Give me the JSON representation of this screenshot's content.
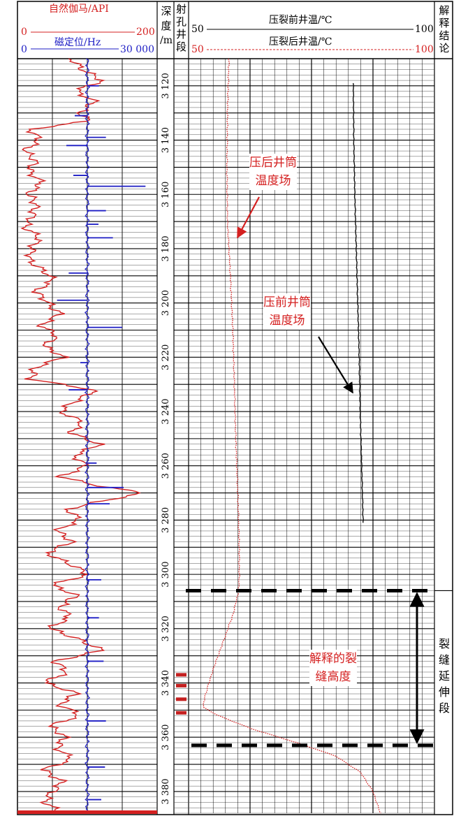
{
  "track1": {
    "gr_label": "自然伽马/API",
    "gr_min": "0",
    "gr_max": "200",
    "ccl_label": "磁定位/Hz",
    "ccl_min": "0",
    "ccl_max": "30 000"
  },
  "depth_header": [
    "深",
    "度",
    "/m"
  ],
  "perf_header": [
    "射",
    "孔",
    "井",
    "段"
  ],
  "temp": {
    "pre_label": "压裂前井温/℃",
    "pre_min": "50",
    "pre_max": "100",
    "post_label": "压裂后井温/℃",
    "post_min": "50",
    "post_max": "100"
  },
  "conclusion_header": [
    "解",
    "释",
    "结",
    "论"
  ],
  "conclusion_text": [
    "裂",
    "缝",
    "延",
    "伸",
    "段"
  ],
  "annotations": {
    "post_field": [
      "压后井筒",
      "温度场"
    ],
    "pre_field": [
      "压前井筒",
      "温度场"
    ],
    "fracture_height": [
      "解释的裂",
      "缝高度"
    ]
  },
  "colors": {
    "gr": "#d42020",
    "ccl": "#1c1cc4",
    "post_temp": "#d42020",
    "pre_temp": "#111111",
    "annotation": "#d42020"
  },
  "chart_data": {
    "type": "line",
    "y_axis": "depth",
    "depth_range": [
      3110,
      3388
    ],
    "depth_ticks": [
      "3 120",
      "3 140",
      "3 160",
      "3 180",
      "3 200",
      "3 220",
      "3 240",
      "3 260",
      "3 280",
      "3 300",
      "3 320",
      "3 340",
      "3 360",
      "3 380"
    ],
    "gr_range": [
      0,
      200
    ],
    "ccl_range": [
      0,
      30000
    ],
    "temp_range": [
      50,
      100
    ],
    "fracture_top_depth": 3306,
    "fracture_bottom_depth": 3363,
    "perforations": [
      3337,
      3341,
      3346,
      3351
    ],
    "series": [
      {
        "name": "自然伽马/API",
        "depth": [
          3110,
          3114,
          3118,
          3122,
          3126,
          3130,
          3133,
          3136,
          3140,
          3144,
          3148,
          3152,
          3156,
          3160,
          3164,
          3168,
          3172,
          3176,
          3180,
          3184,
          3188,
          3192,
          3196,
          3200,
          3204,
          3208,
          3212,
          3216,
          3220,
          3224,
          3228,
          3232,
          3236,
          3240,
          3244,
          3248,
          3252,
          3256,
          3260,
          3264,
          3268,
          3270,
          3272,
          3276,
          3280,
          3284,
          3288,
          3292,
          3296,
          3300,
          3304,
          3308,
          3312,
          3316,
          3320,
          3324,
          3328,
          3332,
          3336,
          3340,
          3344,
          3348,
          3352,
          3356,
          3360,
          3364,
          3368,
          3372,
          3376,
          3380,
          3384,
          3388
        ],
        "values": [
          75,
          95,
          120,
          85,
          110,
          90,
          100,
          20,
          30,
          12,
          25,
          18,
          35,
          15,
          28,
          20,
          12,
          30,
          22,
          15,
          38,
          50,
          25,
          45,
          60,
          35,
          55,
          40,
          65,
          25,
          18,
          110,
          85,
          60,
          95,
          75,
          120,
          80,
          100,
          60,
          130,
          180,
          140,
          70,
          90,
          55,
          80,
          40,
          75,
          100,
          50,
          85,
          60,
          75,
          45,
          90,
          120,
          55,
          70,
          40,
          85,
          60,
          90,
          45,
          70,
          55,
          80,
          35,
          65,
          50,
          40,
          60
        ]
      },
      {
        "name": "磁定位/Hz",
        "base": 15000,
        "depth": [
          3120,
          3131,
          3139,
          3142,
          3153,
          3157,
          3166,
          3171,
          3176,
          3189,
          3199,
          3209,
          3222,
          3232,
          3259,
          3268,
          3274,
          3302,
          3316,
          3332,
          3354,
          3371,
          3383
        ],
        "values": [
          17500,
          12300,
          19000,
          10500,
          12000,
          27500,
          19000,
          17400,
          20500,
          11000,
          8500,
          22500,
          13500,
          11000,
          17000,
          22800,
          19800,
          18000,
          17500,
          18500,
          19000,
          18800,
          18000
        ]
      },
      {
        "name": "压裂后井温/℃",
        "depth": [
          3110,
          3130,
          3150,
          3170,
          3190,
          3210,
          3230,
          3250,
          3270,
          3290,
          3300,
          3306,
          3315,
          3325,
          3335,
          3345,
          3349,
          3352,
          3357,
          3362,
          3367,
          3373,
          3380,
          3388
        ],
        "values": [
          58.2,
          57.9,
          57.8,
          57.9,
          58.5,
          59.0,
          59.3,
          59.6,
          60.0,
          60.3,
          60.3,
          60.2,
          59.0,
          57.0,
          55.0,
          53.3,
          53.0,
          56.0,
          63.0,
          72.0,
          80.0,
          85.0,
          87.5,
          89.0
        ]
      },
      {
        "name": "压裂前井温/℃",
        "depth": [
          3119,
          3140,
          3160,
          3180,
          3200,
          3220,
          3240,
          3260,
          3281
        ],
        "values": [
          83.5,
          83.6,
          83.8,
          84.1,
          84.4,
          84.7,
          84.9,
          85.2,
          85.5
        ]
      }
    ]
  }
}
